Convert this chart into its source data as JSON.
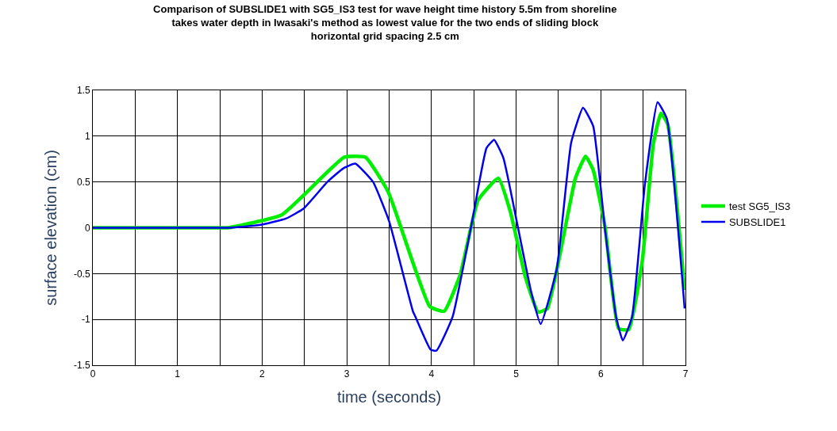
{
  "chart_data": {
    "type": "line",
    "title": "Comparison of SUBSLIDE1 with SG5_IS3 test for wave height time history 5.5m from shoreline\ntakes water depth in Iwasaki's method as lowest value for the two ends of sliding block\nhorizontal grid spacing 2.5 cm",
    "xlabel": "time (seconds)",
    "ylabel": "surface elevation (cm)",
    "xlim": [
      0,
      7
    ],
    "xticks": [
      0,
      {
        "value": 0.5,
        "label": null
      },
      1,
      {
        "value": 1.5,
        "label": null
      },
      2,
      {
        "value": 2.5,
        "label": null
      },
      3,
      {
        "value": 3.5,
        "label": null
      },
      4,
      {
        "value": 4.5,
        "label": null
      },
      5,
      {
        "value": 5.5,
        "label": null
      },
      6,
      {
        "value": 6.5,
        "label": null
      },
      7
    ],
    "ylim": [
      -1.5,
      1.5
    ],
    "yticks": [
      -1.5,
      -1,
      -0.5,
      0,
      0.5,
      1,
      1.5
    ],
    "grid": true,
    "legend": "right",
    "series": [
      {
        "name": "test SG5_IS3",
        "color": "#00ee00",
        "x": [
          0,
          1.5,
          1.59,
          2.23,
          2.97,
          3.22,
          3.49,
          3.98,
          4.15,
          4.34,
          4.55,
          4.79,
          4.93,
          5.11,
          5.26,
          5.37,
          5.7,
          5.82,
          5.91,
          6.05,
          6.21,
          6.33,
          6.49,
          6.62,
          6.71,
          6.79,
          6.99
        ],
        "values": [
          0,
          0,
          0,
          0.14,
          0.77,
          0.77,
          0.39,
          -0.86,
          -0.91,
          -0.51,
          0.3,
          0.54,
          0.18,
          -0.54,
          -0.92,
          -0.88,
          0.54,
          0.78,
          0.63,
          0.01,
          -1.1,
          -1.11,
          -0.36,
          0.91,
          1.25,
          1.13,
          -0.68
        ]
      },
      {
        "name": "SUBSLIDE1",
        "color": "#0000ee",
        "x": [
          0,
          1.5,
          1.62,
          1.97,
          2.28,
          2.49,
          2.77,
          2.96,
          3.1,
          3.31,
          3.5,
          3.78,
          3.81,
          3.99,
          4.06,
          4.25,
          4.48,
          4.65,
          4.74,
          4.85,
          5.02,
          5.18,
          5.29,
          5.48,
          5.65,
          5.79,
          5.91,
          6.05,
          6.18,
          6.26,
          6.37,
          6.52,
          6.67,
          6.78,
          6.99
        ],
        "values": [
          0,
          0,
          0,
          0.03,
          0.1,
          0.21,
          0.5,
          0.65,
          0.7,
          0.5,
          0.07,
          -0.91,
          -0.97,
          -1.33,
          -1.34,
          -0.97,
          0.07,
          0.87,
          0.96,
          0.76,
          0.01,
          -0.71,
          -1.05,
          -0.45,
          0.93,
          1.31,
          1.11,
          -0.02,
          -0.97,
          -1.23,
          -0.97,
          0.47,
          1.37,
          1.19,
          -0.88
        ]
      }
    ]
  }
}
